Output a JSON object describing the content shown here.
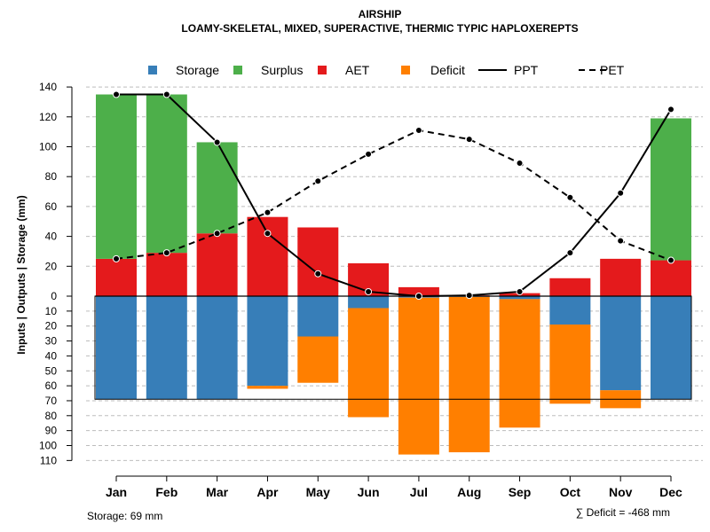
{
  "chart_data": {
    "type": "bar",
    "title": "AIRSHIP",
    "subtitle": "LOAMY-SKELETAL, MIXED, SUPERACTIVE, THERMIC TYPIC HAPLOXEREPTS",
    "ylabel": "Inputs | Outputs | Storage    (mm)",
    "categories": [
      "Jan",
      "Feb",
      "Mar",
      "Apr",
      "May",
      "Jun",
      "Jul",
      "Aug",
      "Sep",
      "Oct",
      "Nov",
      "Dec"
    ],
    "ylim_top": [
      0,
      140
    ],
    "ylim_bottom": [
      0,
      110
    ],
    "yticks_top": [
      0,
      20,
      40,
      60,
      80,
      100,
      120,
      140
    ],
    "yticks_bottom": [
      10,
      20,
      30,
      40,
      50,
      60,
      70,
      80,
      90,
      100,
      110
    ],
    "legend": [
      {
        "label": "Storage",
        "kind": "square",
        "color": "#377eb8"
      },
      {
        "label": "Surplus",
        "kind": "square",
        "color": "#4daf4a"
      },
      {
        "label": "AET",
        "kind": "square",
        "color": "#e41a1c"
      },
      {
        "label": "Deficit",
        "kind": "square",
        "color": "#ff7f00"
      },
      {
        "label": "PPT",
        "kind": "solid-line",
        "color": "#000000"
      },
      {
        "label": "PET",
        "kind": "dashed-line",
        "color": "#000000"
      }
    ],
    "series": [
      {
        "name": "AET",
        "color": "#e41a1c",
        "values": [
          25,
          29,
          42,
          53,
          46,
          22,
          6,
          0.5,
          2,
          12,
          25,
          24
        ]
      },
      {
        "name": "Surplus",
        "color": "#4daf4a",
        "values": [
          110,
          106,
          61,
          0,
          0,
          0,
          0,
          0,
          0,
          0,
          0,
          95
        ]
      },
      {
        "name": "Storage",
        "color": "#377eb8",
        "values": [
          69,
          69,
          69,
          60,
          27,
          8,
          1,
          0.5,
          2,
          19,
          63,
          69
        ]
      },
      {
        "name": "Deficit",
        "color": "#ff7f00",
        "values": [
          0,
          0,
          0,
          2,
          31,
          73,
          105,
          104,
          86,
          53,
          12,
          0
        ]
      },
      {
        "name": "PPT",
        "color": "#000000",
        "values": [
          135,
          135,
          103,
          42,
          15,
          3,
          0,
          0.5,
          3,
          29,
          69,
          125
        ]
      },
      {
        "name": "PET",
        "color": "#000000",
        "values": [
          25,
          29,
          42,
          56,
          77,
          95,
          111,
          105,
          89,
          66,
          37,
          24
        ]
      }
    ],
    "storage_capacity": 69,
    "footer_left": "Storage: 69 mm",
    "footer_right": "∑ Deficit = -468 mm"
  }
}
